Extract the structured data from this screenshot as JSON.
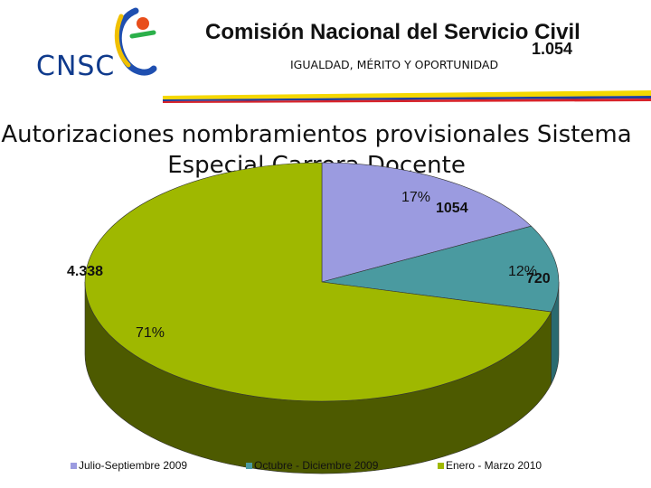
{
  "header": {
    "logo_text": "CNSC",
    "org_name": "Comisión Nacional del Servicio Civil",
    "motto": "IGUALDAD, MÉRITO Y OPORTUNIDAD",
    "number": "1.054"
  },
  "colors": {
    "flag_yellow": "#f5d800",
    "flag_blue": "#1f3f9a",
    "flag_red": "#d8232a",
    "slice_1": "#9b9be0",
    "slice_2": "#4a9aa0",
    "slice_3": "#9fb800",
    "slice_3_side": "#4d5a00"
  },
  "chart_data": {
    "type": "pie",
    "title": "Autorizaciones nombramientos provisionales Sistema Especial Carrera Docente",
    "slices": [
      {
        "name": "Julio-Septiembre 2009",
        "value": 1054,
        "value_label": "1054",
        "percent_label": "17%"
      },
      {
        "name": "Octubre - Diciembre 2009",
        "value": 720,
        "value_label": "720",
        "percent_label": "12%"
      },
      {
        "name": "Enero - Marzo 2010",
        "value": 4338,
        "value_label": "4.338",
        "percent_label": "71%"
      }
    ],
    "legend_position": "bottom"
  }
}
